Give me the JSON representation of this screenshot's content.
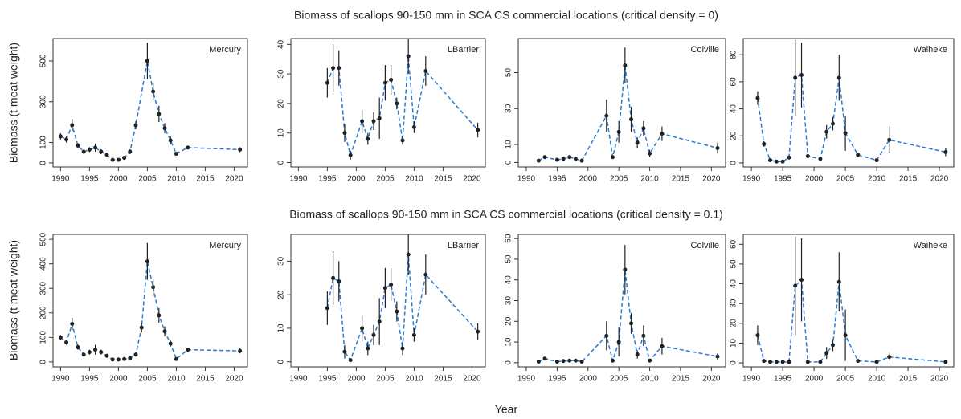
{
  "rows": [
    {
      "title": "Biomass of scallops 90-150 mm in SCA CS commercial locations (critical density = 0)",
      "ylabel": "Biomass (t meat weight)"
    },
    {
      "title": "Biomass of scallops 90-150 mm in SCA CS commercial locations (critical density = 0.1)",
      "ylabel": "Biomass (t meat weight)"
    }
  ],
  "xlabel": "Year",
  "chart_data": [
    {
      "type": "line",
      "label": "Mercury",
      "color": "#2b7bd4",
      "x": [
        1990,
        1991,
        1992,
        1993,
        1994,
        1995,
        1996,
        1997,
        1998,
        1999,
        2000,
        2001,
        2002,
        2003,
        2005,
        2006,
        2007,
        2008,
        2009,
        2010,
        2012,
        2021
      ],
      "values": [
        130,
        115,
        185,
        85,
        55,
        65,
        75,
        55,
        40,
        15,
        15,
        25,
        55,
        185,
        500,
        350,
        240,
        170,
        110,
        45,
        75,
        65
      ],
      "errors": [
        15,
        15,
        30,
        12,
        10,
        12,
        20,
        12,
        10,
        5,
        5,
        8,
        12,
        20,
        90,
        40,
        40,
        25,
        20,
        10,
        8,
        12
      ],
      "xlim": [
        1988.7,
        2022.3
      ],
      "xticks": [
        1990,
        1995,
        2000,
        2005,
        2010,
        2015,
        2020
      ],
      "ylim": [
        -20,
        610
      ],
      "yticks": [
        0,
        100,
        300,
        500
      ]
    },
    {
      "type": "line",
      "label": "LBarrier",
      "color": "#2b7bd4",
      "x": [
        1995,
        1996,
        1997,
        1998,
        1999,
        2001,
        2002,
        2003,
        2004,
        2005,
        2006,
        2007,
        2008,
        2009,
        2010,
        2012,
        2021
      ],
      "values": [
        27,
        32,
        32,
        10,
        2.5,
        14,
        8,
        14,
        15,
        27,
        28,
        20,
        7.5,
        36,
        12,
        31,
        11
      ],
      "errors": [
        5,
        8,
        6,
        3,
        1.5,
        4,
        2,
        3,
        7,
        6,
        5,
        2,
        1.5,
        6,
        2,
        5,
        2.5
      ],
      "xlim": [
        1988.7,
        2022.3
      ],
      "xticks": [
        1990,
        1995,
        2000,
        2005,
        2010,
        2015,
        2020
      ],
      "ylim": [
        -1.5,
        42
      ],
      "yticks": [
        0,
        10,
        20,
        30,
        40
      ]
    },
    {
      "type": "line",
      "label": "Colville",
      "color": "#2b7bd4",
      "x": [
        1992,
        1993,
        1995,
        1996,
        1997,
        1998,
        1999,
        2003,
        2004,
        2005,
        2006,
        2007,
        2008,
        2009,
        2010,
        2012,
        2021
      ],
      "values": [
        1,
        3,
        1.5,
        2,
        3,
        2,
        1,
        26,
        3,
        17,
        54,
        24,
        11,
        19,
        5,
        16,
        8
      ],
      "errors": [
        1,
        1,
        1,
        1,
        1,
        1,
        1,
        9,
        1,
        6,
        10,
        7,
        3,
        4,
        2,
        4,
        3
      ],
      "xlim": [
        1988.7,
        2022.3
      ],
      "xticks": [
        1990,
        1995,
        2000,
        2005,
        2010,
        2015,
        2020
      ],
      "ylim": [
        -2.5,
        69
      ],
      "yticks": [
        0,
        10,
        30,
        50
      ]
    },
    {
      "type": "line",
      "label": "Waiheke",
      "color": "#2b7bd4",
      "x": [
        1991,
        1992,
        1993,
        1994,
        1995,
        1996,
        1997,
        1998,
        1999,
        2001,
        2002,
        2003,
        2004,
        2005,
        2007,
        2010,
        2012,
        2021
      ],
      "values": [
        48,
        14,
        2,
        1,
        1,
        4,
        63,
        65,
        5,
        3,
        23,
        29,
        63,
        22,
        6,
        2,
        17,
        8
      ],
      "errors": [
        5,
        2,
        1,
        1,
        1,
        1,
        28,
        24,
        1,
        1,
        5,
        5,
        17,
        13,
        1,
        1,
        10,
        3
      ],
      "xlim": [
        1988.7,
        2022.3
      ],
      "xticks": [
        1990,
        1995,
        2000,
        2005,
        2010,
        2015,
        2020
      ],
      "ylim": [
        -3,
        92
      ],
      "yticks": [
        0,
        20,
        40,
        60,
        80
      ]
    },
    {
      "type": "line",
      "label": "Mercury",
      "color": "#2b7bd4",
      "x": [
        1990,
        1991,
        1992,
        1993,
        1994,
        1995,
        1996,
        1997,
        1998,
        1999,
        2000,
        2001,
        2002,
        2003,
        2004,
        2005,
        2006,
        2007,
        2008,
        2009,
        2010,
        2012,
        2021
      ],
      "values": [
        100,
        80,
        155,
        60,
        30,
        40,
        50,
        40,
        25,
        10,
        10,
        12,
        15,
        30,
        140,
        410,
        305,
        190,
        125,
        75,
        12,
        50,
        45
      ],
      "errors": [
        10,
        10,
        25,
        10,
        8,
        10,
        20,
        10,
        8,
        4,
        4,
        5,
        5,
        8,
        20,
        75,
        35,
        30,
        20,
        12,
        5,
        6,
        10
      ],
      "xlim": [
        1988.7,
        2022.3
      ],
      "xticks": [
        1990,
        1995,
        2000,
        2005,
        2010,
        2015,
        2020
      ],
      "ylim": [
        -20,
        520
      ],
      "yticks": [
        0,
        100,
        200,
        300,
        400,
        500
      ]
    },
    {
      "type": "line",
      "label": "LBarrier",
      "color": "#2b7bd4",
      "x": [
        1995,
        1996,
        1997,
        1998,
        1999,
        2001,
        2002,
        2003,
        2004,
        2005,
        2006,
        2007,
        2008,
        2009,
        2010,
        2012,
        2021
      ],
      "values": [
        16,
        25,
        24,
        3,
        0.5,
        10,
        4,
        8,
        12,
        22,
        23,
        15,
        4,
        32,
        8,
        26,
        9
      ],
      "errors": [
        5,
        8,
        6,
        2,
        0.5,
        4,
        2,
        3,
        7,
        6,
        5,
        3,
        2,
        6,
        2,
        6,
        2.5
      ],
      "xlim": [
        1988.7,
        2022.3
      ],
      "xticks": [
        1990,
        1995,
        2000,
        2005,
        2010,
        2015,
        2020
      ],
      "ylim": [
        -1.5,
        38
      ],
      "yticks": [
        0,
        10,
        20,
        30
      ]
    },
    {
      "type": "line",
      "label": "Colville",
      "color": "#2b7bd4",
      "x": [
        1992,
        1993,
        1995,
        1996,
        1997,
        1998,
        1999,
        2003,
        2004,
        2005,
        2006,
        2007,
        2008,
        2009,
        2010,
        2012,
        2021
      ],
      "values": [
        0.5,
        2,
        0.5,
        0.8,
        1,
        1,
        0.5,
        13,
        1,
        10,
        45,
        19,
        4,
        13,
        1,
        8,
        3
      ],
      "errors": [
        0.5,
        0.5,
        0.5,
        0.5,
        0.5,
        0.5,
        0.5,
        7,
        0.5,
        7,
        12,
        5,
        2,
        5,
        0.5,
        4,
        1.5
      ],
      "xlim": [
        1988.7,
        2022.3
      ],
      "xticks": [
        1990,
        1995,
        2000,
        2005,
        2010,
        2015,
        2020
      ],
      "ylim": [
        -2,
        62
      ],
      "yticks": [
        0,
        10,
        20,
        30,
        40,
        50,
        60
      ]
    },
    {
      "type": "line",
      "label": "Waiheke",
      "color": "#2b7bd4",
      "x": [
        1991,
        1992,
        1993,
        1994,
        1995,
        1996,
        1997,
        1998,
        1999,
        2001,
        2002,
        2003,
        2004,
        2005,
        2007,
        2010,
        2012,
        2021
      ],
      "values": [
        14,
        1,
        0.5,
        0.5,
        0.5,
        0.5,
        39,
        42,
        0.5,
        0.5,
        5,
        9,
        41,
        14,
        1,
        0.5,
        3,
        0.5
      ],
      "errors": [
        5,
        0.5,
        0.5,
        0.5,
        0.5,
        0.5,
        25,
        21,
        0.5,
        0.5,
        3,
        3,
        15,
        13,
        0.5,
        0.5,
        2,
        0.5
      ],
      "xlim": [
        1988.7,
        2022.3
      ],
      "xticks": [
        1990,
        1995,
        2000,
        2005,
        2010,
        2015,
        2020
      ],
      "ylim": [
        -2,
        65
      ],
      "yticks": [
        0,
        10,
        20,
        30,
        40,
        50,
        60
      ]
    }
  ]
}
